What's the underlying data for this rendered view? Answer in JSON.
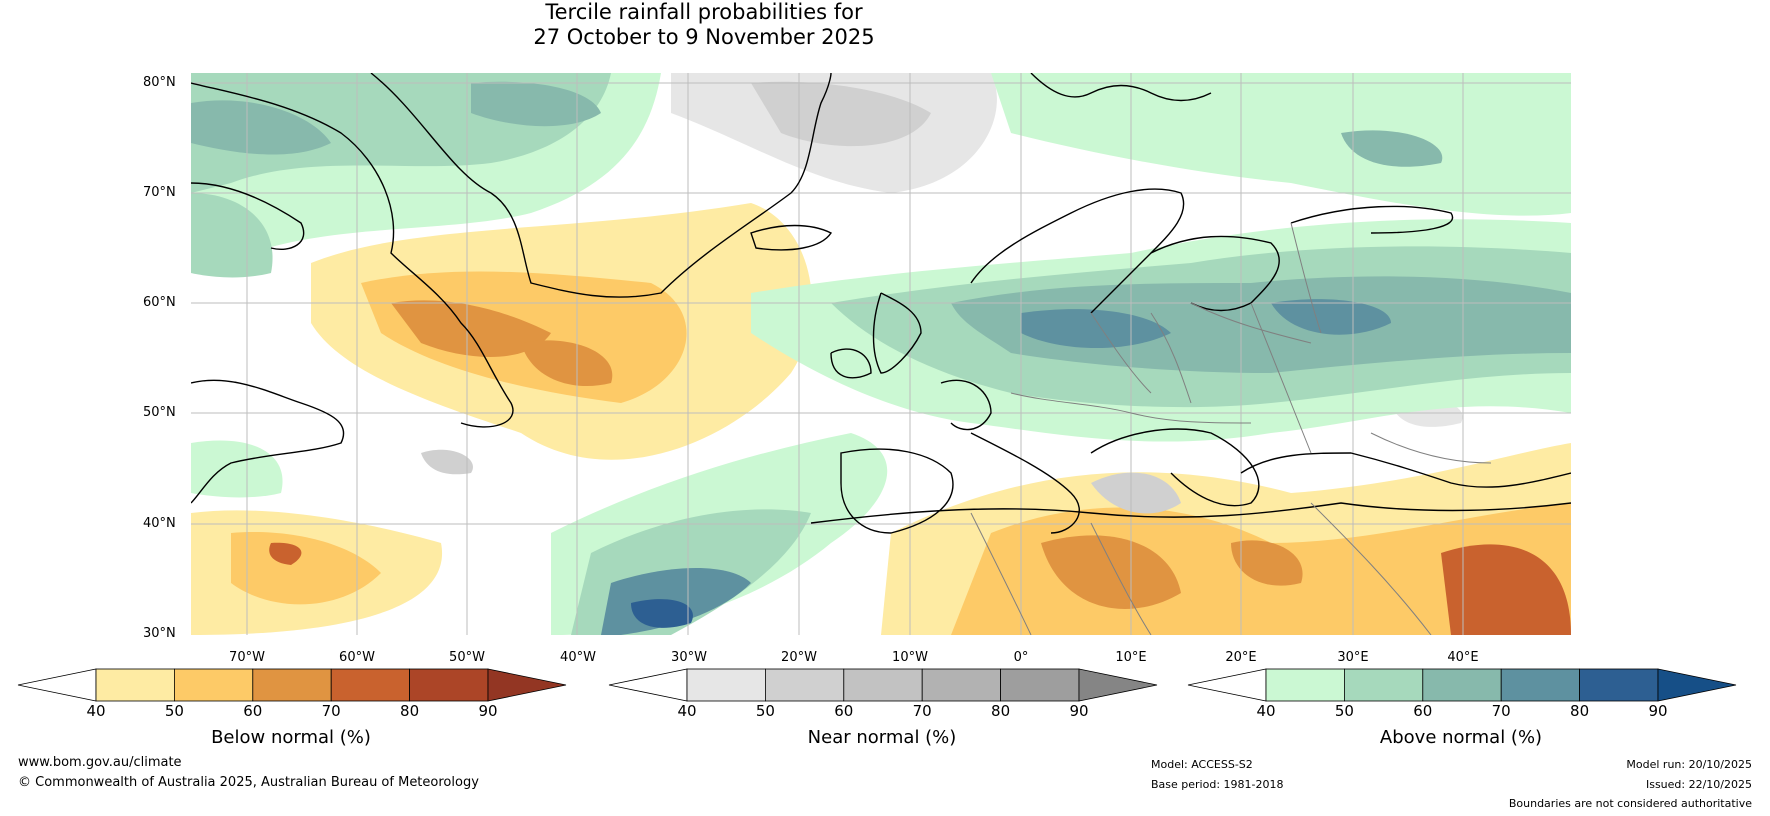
{
  "title": {
    "line1": "Tercile rainfall probabilities for",
    "line2": "27 October to 9 November 2025"
  },
  "map": {
    "region": "North Atlantic and Europe",
    "lat_labels": [
      "80°N",
      "70°N",
      "60°N",
      "50°N",
      "40°N",
      "30°N"
    ],
    "lon_labels": [
      "70°W",
      "60°W",
      "50°W",
      "40°W",
      "30°W",
      "20°W",
      "10°W",
      "0°",
      "10°E",
      "20°E",
      "30°E",
      "40°E"
    ]
  },
  "colorbars": [
    {
      "label": "Below normal (%)",
      "ticks": [
        "40",
        "50",
        "60",
        "70",
        "80",
        "90"
      ],
      "colors": [
        "#ffffff",
        "#feeba3",
        "#fdca67",
        "#e09441",
        "#c9622e",
        "#ac4527",
        "#933623"
      ]
    },
    {
      "label": "Near normal (%)",
      "ticks": [
        "40",
        "50",
        "60",
        "70",
        "80",
        "90"
      ],
      "colors": [
        "#ffffff",
        "#e6e6e6",
        "#d0d0d0",
        "#c2c2c2",
        "#b2b2b2",
        "#9e9e9e",
        "#858585"
      ]
    },
    {
      "label": "Above normal (%)",
      "ticks": [
        "40",
        "50",
        "60",
        "70",
        "80",
        "90"
      ],
      "colors": [
        "#ffffff",
        "#cbf8d3",
        "#a6d9bc",
        "#87b9ac",
        "#5e91a0",
        "#2d5f92",
        "#164f87"
      ]
    }
  ],
  "footer": {
    "website": "www.bom.gov.au/climate",
    "copyright": "© Commonwealth of Australia 2025, Australian Bureau of Meteorology",
    "model": "Model: ACCESS-S2",
    "base_period": "Base period: 1981-2018",
    "model_run": "Model run: 20/10/2025",
    "issued": "Issued: 22/10/2025",
    "disclaimer": "Boundaries are not considered authoritative"
  }
}
